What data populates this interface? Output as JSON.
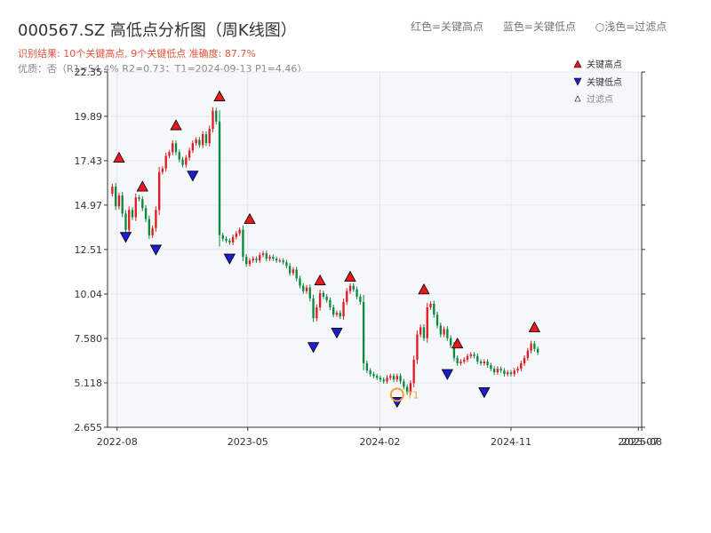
{
  "header": {
    "title": "000567.SZ 高低点分析图（周K线图）",
    "legend_high": "红色=关键高点",
    "legend_low": "蓝色=关键低点",
    "legend_filtered": "○浅色=过滤点",
    "result_line": "识别结果: 10个关键高点, 9个关键低点  准确度: 87.7%",
    "quality_line": "优质：否（R1=54.4%  R2=0.73；T1=2024-09-13 P1=4.46）"
  },
  "colors": {
    "up": "#e21b23",
    "down": "#0a8a3c",
    "high_marker": "#e8191c",
    "low_marker": "#1c1ccc",
    "t1_ring": "#f5a030",
    "plot_bg": "#f5f7fa",
    "grid": "#dde2ea"
  },
  "chart_data": {
    "type": "candlestick",
    "interval": "weekly",
    "start_date": "2022-07-22",
    "yticks": [
      2.655,
      5.118,
      7.58,
      10.04,
      12.51,
      14.97,
      17.43,
      19.89,
      22.35
    ],
    "ytick_labels": [
      "2.655",
      "5.118",
      "7.580",
      "10.04",
      "12.51",
      "14.97",
      "17.43",
      "19.89",
      "22.35"
    ],
    "ylim": [
      2.655,
      22.35
    ],
    "xticks": [
      {
        "date": "2022-08-01",
        "label": "2022-08"
      },
      {
        "date": "2023-05-01",
        "label": "2023-05"
      },
      {
        "date": "2024-02-01",
        "label": "2024-02"
      },
      {
        "date": "2024-11-01",
        "label": "2024-11"
      },
      {
        "date": "2025-07-25",
        "label": "2025-07"
      },
      {
        "date": "2025-08-01",
        "label": "2025-08"
      }
    ],
    "closes": [
      16.0,
      14.9,
      15.5,
      14.5,
      13.6,
      14.7,
      14.3,
      15.4,
      15.3,
      14.8,
      14.2,
      13.3,
      13.7,
      14.7,
      16.8,
      17.0,
      17.7,
      17.9,
      18.4,
      17.9,
      17.5,
      17.2,
      17.6,
      18.0,
      18.4,
      18.6,
      18.3,
      18.9,
      18.4,
      19.2,
      20.2,
      19.6,
      13.3,
      13.1,
      13.0,
      12.9,
      13.2,
      13.4,
      13.6,
      12.1,
      11.7,
      11.9,
      12.0,
      11.9,
      12.2,
      12.3,
      12.0,
      12.1,
      12.0,
      11.9,
      11.9,
      11.8,
      11.6,
      11.2,
      11.4,
      10.9,
      10.5,
      10.2,
      10.4,
      9.8,
      8.7,
      9.3,
      10.1,
      9.9,
      9.7,
      9.3,
      8.9,
      9.0,
      8.8,
      9.6,
      10.2,
      10.5,
      10.3,
      9.9,
      9.6,
      6.2,
      5.8,
      5.6,
      5.5,
      5.4,
      5.3,
      5.2,
      5.4,
      5.5,
      5.3,
      5.5,
      5.2,
      4.9,
      4.6,
      5.1,
      6.4,
      7.8,
      8.2,
      7.6,
      9.3,
      9.5,
      8.9,
      8.3,
      7.8,
      8.1,
      7.6,
      7.2,
      6.5,
      6.2,
      6.3,
      6.4,
      6.6,
      6.7,
      6.6,
      6.3,
      6.2,
      6.3,
      6.1,
      5.9,
      5.7,
      5.9,
      5.8,
      5.6,
      5.7,
      5.6,
      5.8,
      5.9,
      6.2,
      6.5,
      6.9,
      7.3,
      7.0,
      6.8
    ],
    "key_highs": [
      {
        "index": 2,
        "price": 17.2
      },
      {
        "index": 9,
        "price": 15.6
      },
      {
        "index": 19,
        "price": 19.0
      },
      {
        "index": 32,
        "price": 20.6
      },
      {
        "index": 41,
        "price": 13.8
      },
      {
        "index": 62,
        "price": 10.4
      },
      {
        "index": 71,
        "price": 10.6
      },
      {
        "index": 93,
        "price": 9.9
      },
      {
        "index": 103,
        "price": 6.9
      },
      {
        "index": 126,
        "price": 7.8
      }
    ],
    "key_lows": [
      {
        "index": 4,
        "price": 13.6
      },
      {
        "index": 13,
        "price": 12.9
      },
      {
        "index": 24,
        "price": 17.0
      },
      {
        "index": 35,
        "price": 12.4
      },
      {
        "index": 60,
        "price": 7.5
      },
      {
        "index": 67,
        "price": 8.3
      },
      {
        "index": 85,
        "price": 4.46
      },
      {
        "index": 100,
        "price": 6.0
      },
      {
        "index": 111,
        "price": 5.0
      }
    ],
    "t1": {
      "index": 85,
      "price": 4.46,
      "label": "T1"
    },
    "legend": {
      "high": "关键高点",
      "low": "关键低点",
      "filtered": "过滤点"
    }
  }
}
